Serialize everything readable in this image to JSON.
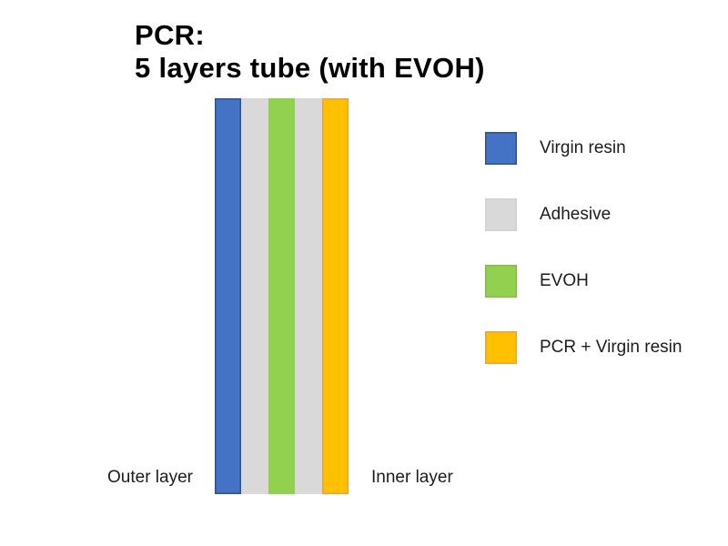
{
  "title": {
    "line1": "PCR:",
    "line2": "5 layers tube (with EVOH)"
  },
  "tube": {
    "outer_label": "Outer layer",
    "inner_label": "Inner layer",
    "layers": [
      {
        "name": "virgin-resin",
        "label": "Virgin resin",
        "color": "#4472C4",
        "border": "#2F528F"
      },
      {
        "name": "adhesive",
        "label": "Adhesive",
        "color": "#D9D9D9",
        "border": ""
      },
      {
        "name": "evoh",
        "label": "EVOH",
        "color": "#92D050",
        "border": ""
      },
      {
        "name": "adhesive-2",
        "label": "Adhesive",
        "color": "#D9D9D9",
        "border": ""
      },
      {
        "name": "pcr-virgin-resin",
        "label": "PCR + Virgin resin",
        "color": "#FFC000",
        "border": "#EDA33B"
      }
    ]
  },
  "legend": {
    "items": [
      {
        "name": "virgin-resin",
        "label": "Virgin resin",
        "color": "#4472C4",
        "border": "#2F528F"
      },
      {
        "name": "adhesive",
        "label": "Adhesive",
        "color": "#D9D9D9",
        "border": "#D2D2D2"
      },
      {
        "name": "evoh",
        "label": "EVOH",
        "color": "#92D050",
        "border": "#84BE41"
      },
      {
        "name": "pcr-virgin-resin",
        "label": "PCR + Virgin resin",
        "color": "#FFC000",
        "border": "#EDA33B"
      }
    ]
  },
  "colors": {
    "background": "#FFFFFF",
    "title_text": "#000000",
    "label_text": "#1C1C1C"
  }
}
